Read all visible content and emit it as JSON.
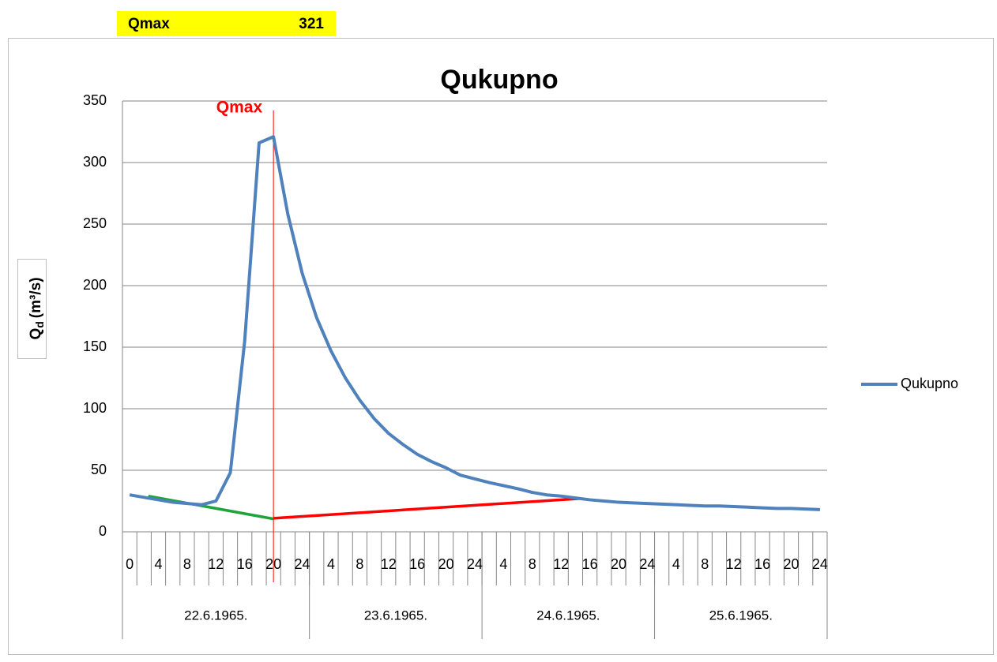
{
  "cell": {
    "label": "Qmax",
    "value": 321
  },
  "chart_data": {
    "type": "line",
    "title": "Qukupno",
    "ylabel": {
      "main": "Q",
      "sub": "d",
      "unit": "(m³/s)"
    },
    "categories": [
      "0",
      null,
      "4",
      null,
      "8",
      null,
      "12",
      null,
      "16",
      null,
      "20",
      null,
      "24",
      null,
      "4",
      null,
      "8",
      null,
      "12",
      null,
      "16",
      null,
      "20",
      null,
      "24",
      null,
      "4",
      null,
      "8",
      null,
      "12",
      null,
      "16",
      null,
      "20",
      null,
      "24",
      null,
      "4",
      null,
      "8",
      null,
      "12",
      null,
      "16",
      null,
      "20",
      null,
      "24"
    ],
    "groups": [
      {
        "label": "22.6.1965.",
        "count": 13
      },
      {
        "label": "23.6.1965.",
        "count": 12
      },
      {
        "label": "24.6.1965.",
        "count": 12
      },
      {
        "label": "25.6.1965.",
        "count": 12
      }
    ],
    "series": [
      {
        "name": "Qukupno",
        "color": "#4f81bd",
        "values": [
          30,
          28,
          26,
          24,
          23,
          22,
          25,
          48,
          155,
          316,
          321,
          258,
          210,
          174,
          147,
          125,
          107,
          92,
          80,
          71,
          63,
          57,
          52,
          46,
          43,
          40,
          37.5,
          35,
          32,
          30,
          29,
          27.5,
          26,
          25,
          24,
          23.5,
          23,
          22.5,
          22,
          21.5,
          21,
          21,
          20.5,
          20,
          19.5,
          19,
          19,
          18.5,
          18
        ]
      }
    ],
    "baselines": [
      {
        "color": "#1fa33a",
        "points": [
          [
            1.3,
            29
          ],
          [
            10,
            10.5
          ]
        ]
      },
      {
        "color": "#ff0000",
        "points": [
          [
            10,
            11
          ],
          [
            31.3,
            27
          ]
        ]
      }
    ],
    "marker": {
      "text": "Qmax",
      "index": 10,
      "color": "#ff0000"
    },
    "ylim": [
      0,
      350
    ],
    "yticks": [
      0,
      50,
      100,
      150,
      200,
      250,
      300,
      350
    ],
    "grid": true,
    "legend": "right"
  }
}
